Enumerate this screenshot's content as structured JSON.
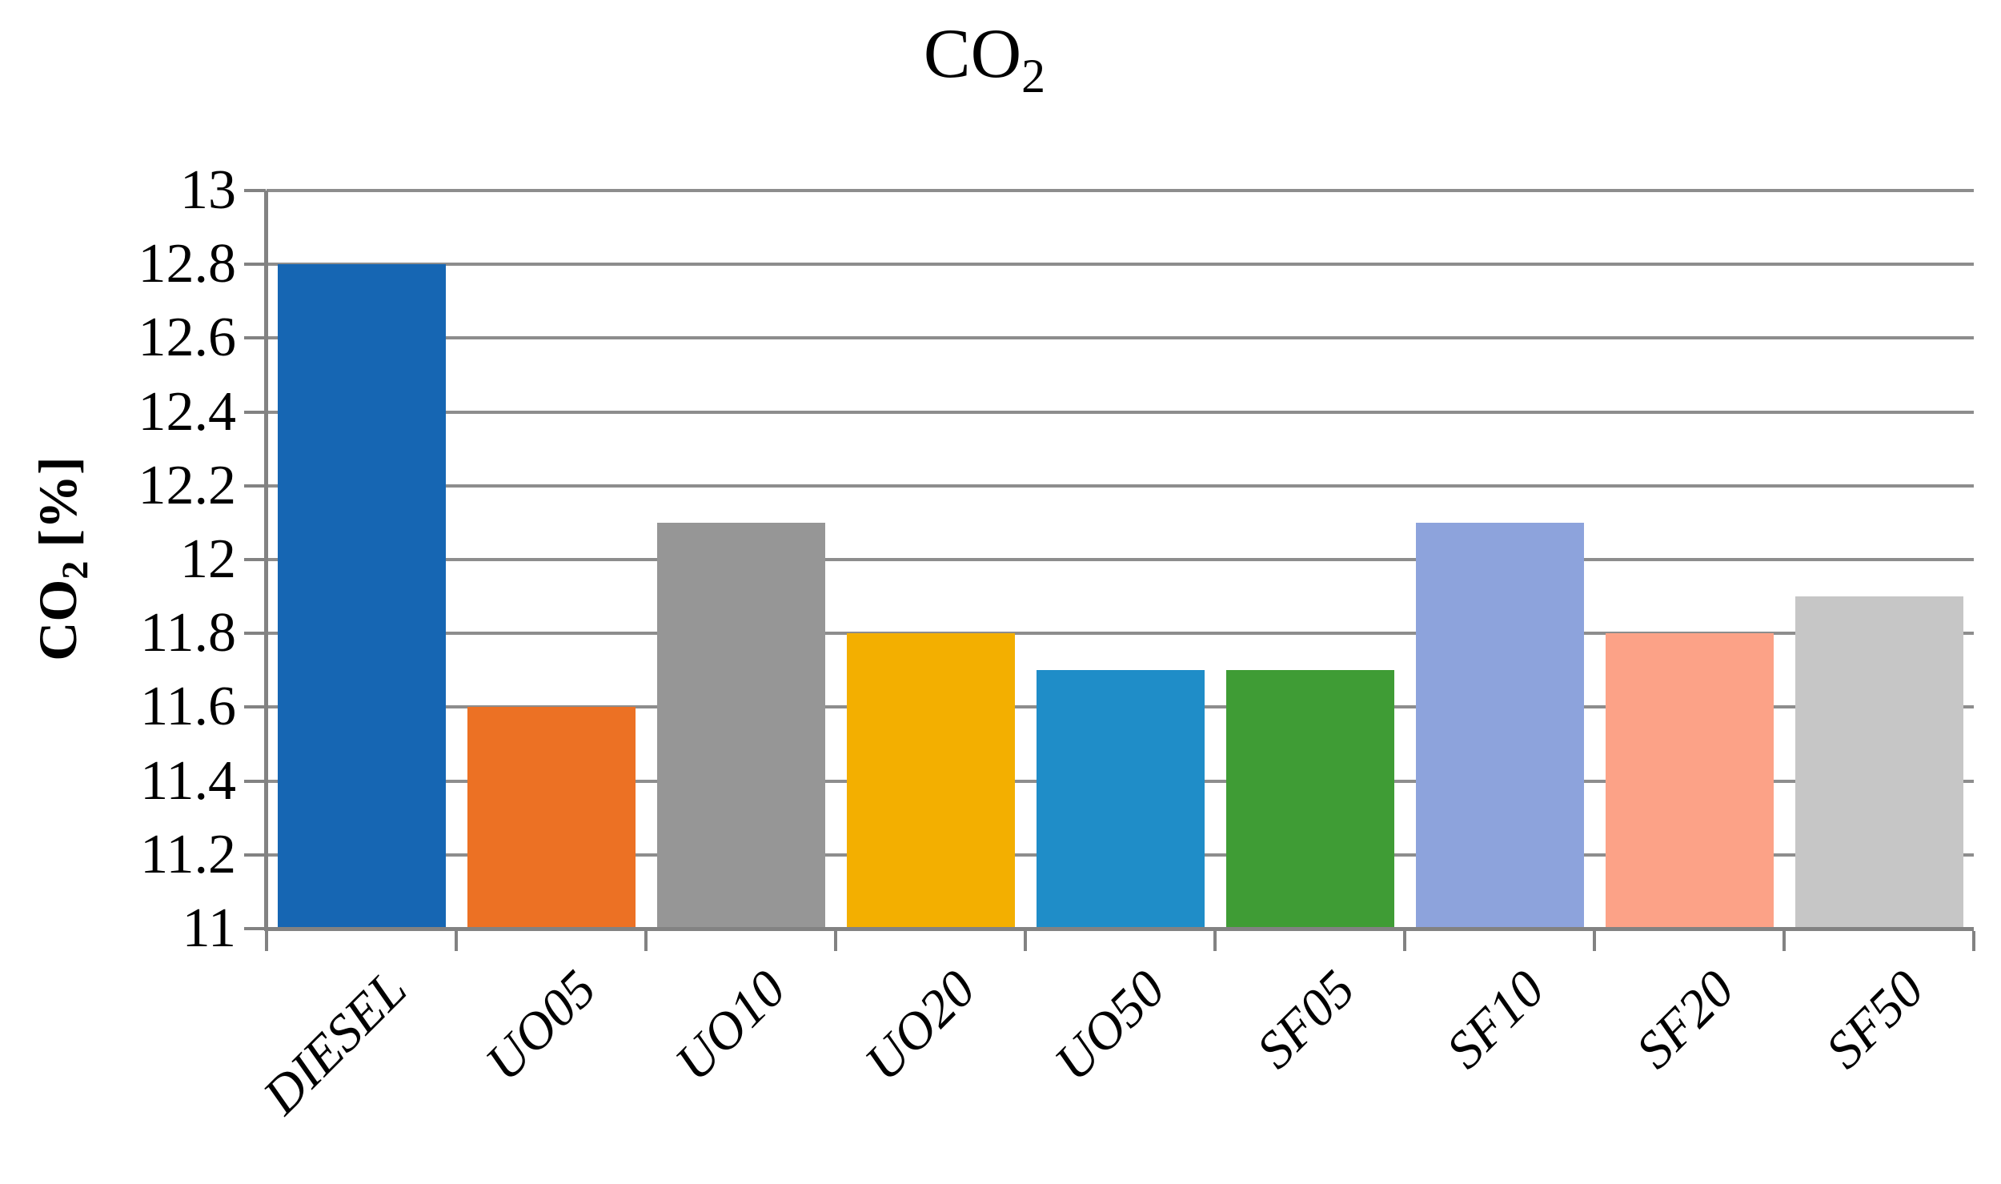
{
  "chart": {
    "title": {
      "text": "CO",
      "subscript": "2"
    },
    "y_axis_title": {
      "prefix": "CO",
      "subscript": "2",
      "suffix": " [%]"
    }
  },
  "chart_data": {
    "type": "bar",
    "title": "CO2",
    "xlabel": "",
    "ylabel": "CO2 [%]",
    "categories": [
      "DIESEL",
      "UO05",
      "UO10",
      "UO20",
      "UO50",
      "SF05",
      "SF10",
      "SF20",
      "SF50"
    ],
    "values": [
      12.8,
      11.6,
      12.1,
      11.8,
      11.7,
      11.7,
      12.1,
      11.8,
      11.9
    ],
    "bar_colors": [
      "#1666B3",
      "#EC7124",
      "#969696",
      "#F3AF00",
      "#1F8DC8",
      "#3F9C35",
      "#8DA3DC",
      "#FCA287",
      "#C6C6C6"
    ],
    "ylim": [
      11,
      13
    ],
    "ytick_step": 0.2,
    "ytick_labels": [
      "11",
      "11.2",
      "11.4",
      "11.6",
      "11.8",
      "12",
      "12.2",
      "12.4",
      "12.6",
      "12.8",
      "13"
    ],
    "grid": true,
    "legend_position": "none",
    "style_colors": {
      "gridline": "#8D8D8D",
      "axis": "#828282",
      "text": "#000000",
      "background": "#FFFFFF"
    }
  }
}
